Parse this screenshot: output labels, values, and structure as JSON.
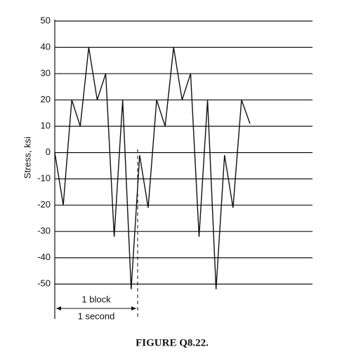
{
  "chart_data": {
    "type": "line",
    "caption": "FIGURE Q8.22.",
    "ylabel": "Stress, ksi",
    "categories": [
      null,
      null,
      null,
      null,
      null,
      null,
      null,
      null,
      null,
      null,
      null,
      null,
      null,
      null,
      null,
      null,
      null,
      null,
      null,
      null,
      null,
      null,
      null,
      null
    ],
    "values": [
      0,
      -20,
      20,
      10,
      40,
      20,
      30,
      -32,
      20,
      -52,
      -1,
      -21,
      20,
      10,
      40,
      20,
      30,
      -32,
      20,
      -52,
      -1,
      -21,
      20,
      11
    ],
    "color": "#111111",
    "ylim": [
      -55,
      52
    ],
    "yticks": [
      50,
      40,
      30,
      20,
      10,
      0,
      -10,
      -20,
      -30,
      -40,
      -50
    ],
    "grid": true,
    "annotations": [
      "1 block",
      "1 second"
    ]
  }
}
